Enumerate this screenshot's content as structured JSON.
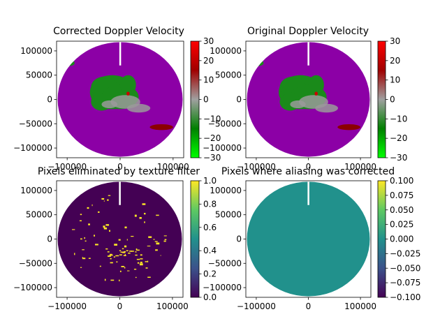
{
  "figure": {
    "background": "#ffffff"
  },
  "chart_data": [
    {
      "type": "heatmap",
      "title": "Corrected Doppler Velocity",
      "xlabel": "",
      "ylabel": "",
      "xlim": [
        -120000,
        120000
      ],
      "ylim": [
        -120000,
        120000
      ],
      "xticks": [
        -100000,
        0,
        100000
      ],
      "xtick_labels": [
        "−100000",
        "0",
        "100000"
      ],
      "yticks": [
        100000,
        50000,
        0,
        -50000,
        -100000
      ],
      "ytick_labels": [
        "100000",
        "50000",
        "0",
        "−50000",
        "−100000"
      ],
      "colorbar": {
        "range": [
          -30,
          30
        ],
        "ticks": [
          30,
          20,
          10,
          0,
          -10,
          -20,
          -30
        ],
        "tick_labels": [
          "30",
          "20",
          "10",
          "0",
          "−10",
          "−20",
          "−30"
        ],
        "stops": [
          "#00ff00",
          "#008000",
          "#a0a0a0",
          "#a00000",
          "#ff0000"
        ]
      },
      "background_value_color": "#8c00a6",
      "features": [
        {
          "kind": "green-echo",
          "color": "#1a8a1a"
        },
        {
          "kind": "gray-echo",
          "color": "#9a9a9a"
        },
        {
          "kind": "red-echo",
          "color": "#8b0000"
        }
      ],
      "grid": false
    },
    {
      "type": "heatmap",
      "title": "Original Doppler Velocity",
      "xlabel": "",
      "ylabel": "",
      "xlim": [
        -120000,
        120000
      ],
      "ylim": [
        -120000,
        120000
      ],
      "xticks": [
        -100000,
        0,
        100000
      ],
      "xtick_labels": [
        "−100000",
        "0",
        "100000"
      ],
      "yticks": [
        100000,
        50000,
        0,
        -50000,
        -100000
      ],
      "ytick_labels": [
        "100000",
        "50000",
        "0",
        "−50000",
        "−100000"
      ],
      "colorbar": {
        "range": [
          -30,
          30
        ],
        "ticks": [
          30,
          20,
          10,
          0,
          -10,
          -20,
          -30
        ],
        "tick_labels": [
          "30",
          "20",
          "10",
          "0",
          "−10",
          "−20",
          "−30"
        ],
        "stops": [
          "#00ff00",
          "#008000",
          "#a0a0a0",
          "#a00000",
          "#ff0000"
        ]
      },
      "background_value_color": "#8c00a6",
      "features": [
        {
          "kind": "green-echo",
          "color": "#1a8a1a"
        },
        {
          "kind": "gray-echo",
          "color": "#9a9a9a"
        },
        {
          "kind": "red-echo",
          "color": "#8b0000"
        }
      ],
      "grid": false
    },
    {
      "type": "heatmap",
      "title": "Pixels eliminated by texture filter",
      "xlabel": "",
      "ylabel": "",
      "xlim": [
        -120000,
        120000
      ],
      "ylim": [
        -120000,
        120000
      ],
      "xticks": [
        -100000,
        0,
        100000
      ],
      "xtick_labels": [
        "−100000",
        "0",
        "100000"
      ],
      "yticks": [
        100000,
        50000,
        0,
        -50000,
        -100000
      ],
      "ytick_labels": [
        "100000",
        "50000",
        "0",
        "−50000",
        "−100000"
      ],
      "colorbar": {
        "range": [
          0.0,
          1.0
        ],
        "ticks": [
          1.0,
          0.8,
          0.6,
          0.4,
          0.2,
          0.0
        ],
        "tick_labels": [
          "1.0",
          "0.8",
          "0.6",
          "0.4",
          "0.2",
          "0.0"
        ],
        "stops": [
          "#440154",
          "#3b528b",
          "#21918c",
          "#5ec962",
          "#fde725"
        ]
      },
      "background_value_color": "#440154",
      "features": [
        {
          "kind": "eliminated-pixels",
          "value": 1.0,
          "color": "#fde725"
        }
      ],
      "grid": false
    },
    {
      "type": "heatmap",
      "title": "Pixels where aliasing was corrected",
      "xlabel": "",
      "ylabel": "",
      "xlim": [
        -120000,
        120000
      ],
      "ylim": [
        -120000,
        120000
      ],
      "xticks": [
        -100000,
        0,
        100000
      ],
      "xtick_labels": [
        "−100000",
        "0",
        "100000"
      ],
      "yticks": [
        100000,
        50000,
        0,
        -50000,
        -100000
      ],
      "ytick_labels": [
        "100000",
        "50000",
        "0",
        "−50000",
        "−100000"
      ],
      "colorbar": {
        "range": [
          -0.1,
          0.1
        ],
        "ticks": [
          0.1,
          0.075,
          0.05,
          0.025,
          0.0,
          -0.025,
          -0.05,
          -0.075,
          -0.1
        ],
        "tick_labels": [
          "0.100",
          "0.075",
          "0.050",
          "0.025",
          "0.000",
          "−0.025",
          "−0.050",
          "−0.075",
          "−0.100"
        ],
        "stops": [
          "#440154",
          "#3b528b",
          "#21918c",
          "#5ec962",
          "#fde725"
        ]
      },
      "background_value_color": "#21918c",
      "features": [],
      "grid": false
    }
  ]
}
